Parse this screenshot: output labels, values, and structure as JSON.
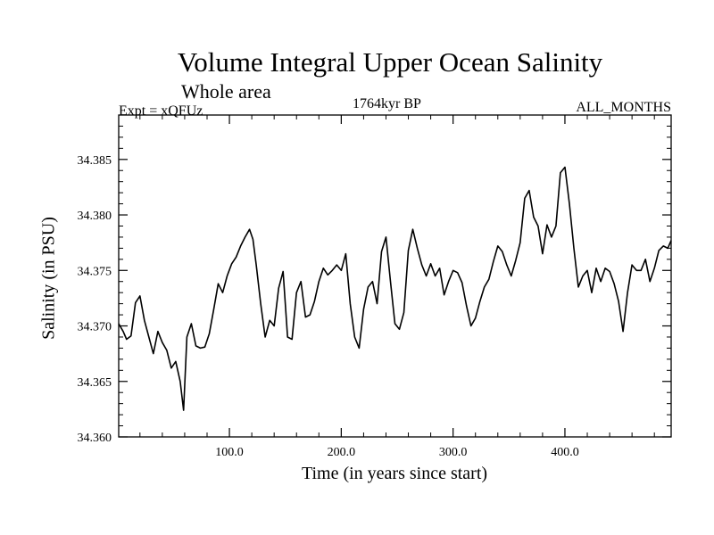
{
  "chart_data": {
    "type": "line",
    "title": "Volume Integral Upper Ocean Salinity",
    "subtitle": "Whole area",
    "experiment": "Expt = xQFUz",
    "period": "1764kyr BP",
    "months": "ALL_MONTHS",
    "xlabel": "Time (in years since start)",
    "ylabel": "Salinity (in PSU)",
    "xlim": [
      1,
      495
    ],
    "ylim": [
      34.36,
      34.389
    ],
    "xticks": [
      100,
      200,
      300,
      400
    ],
    "xtick_labels": [
      "100.0",
      "200.0",
      "300.0",
      "400.0"
    ],
    "yticks": [
      34.36,
      34.365,
      34.37,
      34.375,
      34.38,
      34.385
    ],
    "ytick_labels": [
      "34.360",
      "34.365",
      "34.370",
      "34.375",
      "34.380",
      "34.385"
    ],
    "grid": false,
    "series": [
      {
        "name": "Salinity",
        "x": [
          1,
          5,
          8,
          12,
          16,
          20,
          24,
          28,
          32,
          36,
          40,
          44,
          48,
          52,
          56,
          59,
          62,
          66,
          70,
          74,
          78,
          82,
          86,
          90,
          94,
          98,
          102,
          106,
          110,
          114,
          118,
          121,
          124,
          128,
          132,
          136,
          140,
          144,
          148,
          152,
          156,
          160,
          164,
          168,
          172,
          176,
          180,
          184,
          188,
          192,
          196,
          200,
          204,
          208,
          212,
          216,
          220,
          224,
          228,
          232,
          236,
          240,
          244,
          248,
          252,
          256,
          260,
          264,
          268,
          272,
          276,
          280,
          284,
          288,
          292,
          296,
          300,
          304,
          308,
          312,
          316,
          320,
          324,
          328,
          332,
          336,
          340,
          344,
          348,
          352,
          356,
          360,
          364,
          368,
          372,
          376,
          380,
          384,
          388,
          392,
          396,
          400,
          404,
          408,
          412,
          416,
          420,
          424,
          428,
          432,
          436,
          440,
          444,
          448,
          452,
          456,
          460,
          464,
          468,
          472,
          476,
          480,
          484,
          488,
          492,
          495
        ],
        "values": [
          34.3702,
          34.3695,
          34.3688,
          34.3691,
          34.3721,
          34.3727,
          34.3705,
          34.369,
          34.3675,
          34.3695,
          34.3685,
          34.3678,
          34.3662,
          34.3668,
          34.365,
          34.3624,
          34.369,
          34.3702,
          34.3682,
          34.368,
          34.3681,
          34.3693,
          34.3715,
          34.3738,
          34.373,
          34.3745,
          34.3756,
          34.3762,
          34.3772,
          34.378,
          34.3787,
          34.3778,
          34.3755,
          34.372,
          34.369,
          34.3705,
          34.37,
          34.3734,
          34.3749,
          34.369,
          34.3688,
          34.373,
          34.374,
          34.3708,
          34.371,
          34.3722,
          34.374,
          34.3752,
          34.3746,
          34.375,
          34.3755,
          34.375,
          34.3765,
          34.372,
          34.369,
          34.368,
          34.3715,
          34.3735,
          34.374,
          34.372,
          34.3767,
          34.378,
          34.374,
          34.3702,
          34.3697,
          34.3712,
          34.3768,
          34.3787,
          34.377,
          34.3755,
          34.3745,
          34.3756,
          34.3745,
          34.3752,
          34.3728,
          34.374,
          34.375,
          34.3748,
          34.3739,
          34.3718,
          34.37,
          34.3707,
          34.3722,
          34.3735,
          34.3742,
          34.3758,
          34.3772,
          34.3767,
          34.3755,
          34.3745,
          34.3759,
          34.3775,
          34.3815,
          34.3822,
          34.3798,
          34.379,
          34.3765,
          34.3791,
          34.378,
          34.379,
          34.3838,
          34.3843,
          34.381,
          34.377,
          34.3735,
          34.3745,
          34.375,
          34.373,
          34.3752,
          34.374,
          34.3752,
          34.3749,
          34.3738,
          34.3722,
          34.3695,
          34.373,
          34.3755,
          34.375,
          34.375,
          34.376,
          34.374,
          34.3752,
          34.3768,
          34.3772,
          34.377,
          34.3777
        ]
      }
    ]
  }
}
